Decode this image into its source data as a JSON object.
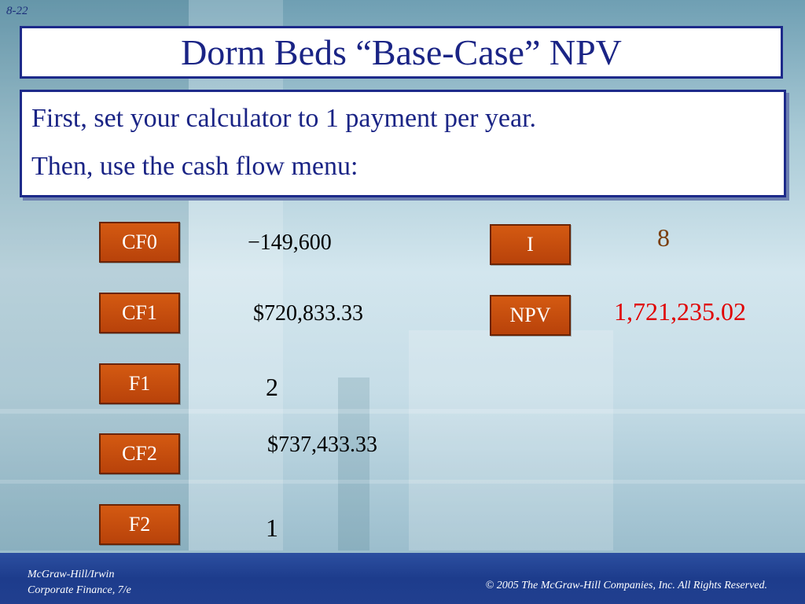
{
  "slide": {
    "number": "8-22"
  },
  "title": "Dorm Beds “Base-Case” NPV",
  "intro": {
    "line1": "First, set your calculator to 1 payment per year.",
    "line2": "Then, use the cash flow menu:"
  },
  "keys": {
    "cf0": {
      "label": "CF0",
      "value": "−149,600"
    },
    "cf1": {
      "label": "CF1",
      "value": "$720,833.33"
    },
    "f1": {
      "label": "F1",
      "value": "2"
    },
    "cf2": {
      "label": "CF2",
      "value": "$737,433.33"
    },
    "f2": {
      "label": "F2",
      "value": "1"
    },
    "i": {
      "label": "I",
      "value": "8"
    },
    "npv": {
      "label": "NPV",
      "value": "1,721,235.02"
    }
  },
  "footer": {
    "publisher": "McGraw-Hill/Irwin",
    "book": "Corporate Finance, 7/e",
    "copyright": "© 2005  The McGraw-Hill Companies, Inc.  All Rights Reserved."
  },
  "colors": {
    "title_text": "#1a2485",
    "key_orange": "#c44b0d",
    "npv_red": "#e00000",
    "footer_blue": "#1d3c8c"
  }
}
